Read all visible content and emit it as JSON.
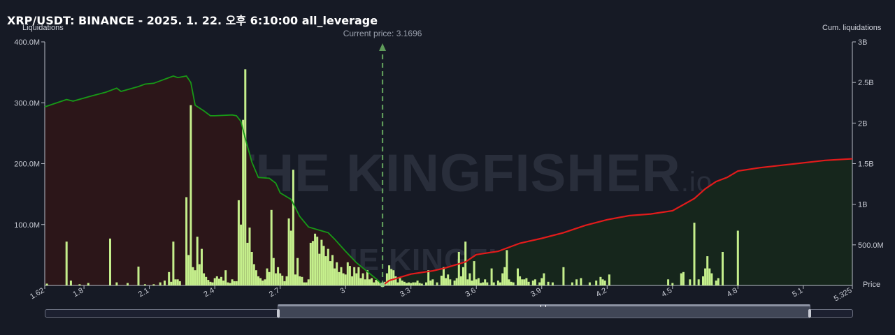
{
  "header": {
    "title": "XRP/USDT: BINANCE - 2025. 1. 22. 오후 6:10:00 all_leverage",
    "left_axis_title": "Liquidations",
    "right_axis_title": "Cum. liquidations",
    "x_axis_title": "Price"
  },
  "watermark": {
    "brand": "THE KINGFISHER",
    "suffix": ".io"
  },
  "colors": {
    "bar": "#c5ef8c",
    "long_line": "#179917",
    "short_line": "#e21b1b",
    "long_fill": "#2c1619",
    "short_fill": "#16261c",
    "current_price_line": "#5f9b5a"
  },
  "chart_data": {
    "type": "bar",
    "title": "XRP/USDT: BINANCE - 2025. 1. 22. 오후 6:10:00 all_leverage",
    "xlabel": "Price",
    "ylabel": "Liquidations",
    "y2label": "Cum. liquidations",
    "xlim": [
      1.62,
      5.325
    ],
    "ylim": [
      0,
      400000000
    ],
    "y2lim": [
      0,
      3000000000
    ],
    "x_ticks": [
      1.62,
      1.8,
      2.1,
      2.4,
      2.7,
      3,
      3.3,
      3.6,
      3.9,
      4.2,
      4.5,
      4.8,
      5.1,
      5.325
    ],
    "x_tick_labels": [
      "1.62",
      "1.8",
      "2.1",
      "2.4",
      "2.7",
      "3",
      "3.3",
      "3.6",
      "3.9",
      "4.2",
      "4.5",
      "4.8",
      "5.1",
      "5.325"
    ],
    "y_ticks": [
      100000000,
      200000000,
      300000000,
      400000000
    ],
    "y_tick_labels": [
      "100.0M",
      "200.0M",
      "300.0M",
      "400.0M"
    ],
    "y2_ticks": [
      500000000,
      1000000000,
      1500000000,
      2000000000,
      2500000000,
      3000000000
    ],
    "y2_tick_labels": [
      "500.0M",
      "1B",
      "1.5B",
      "2B",
      "2.5B",
      "3B"
    ],
    "grid": false,
    "current_price": 3.1696,
    "current_price_label": "Current price: 3.1696",
    "bars": [
      [
        1.63,
        3000000
      ],
      [
        1.72,
        72000000
      ],
      [
        1.74,
        8000000
      ],
      [
        1.78,
        2000000
      ],
      [
        1.82,
        4000000
      ],
      [
        1.92,
        77000000
      ],
      [
        1.95,
        5000000
      ],
      [
        2.0,
        4000000
      ],
      [
        2.05,
        31000000
      ],
      [
        2.08,
        2000000
      ],
      [
        2.12,
        2000000
      ],
      [
        2.15,
        5000000
      ],
      [
        2.17,
        8000000
      ],
      [
        2.19,
        22000000
      ],
      [
        2.2,
        6000000
      ],
      [
        2.21,
        72000000
      ],
      [
        2.22,
        10000000
      ],
      [
        2.23,
        10000000
      ],
      [
        2.24,
        7000000
      ],
      [
        2.27,
        145000000
      ],
      [
        2.28,
        50000000
      ],
      [
        2.29,
        296000000
      ],
      [
        2.3,
        30000000
      ],
      [
        2.31,
        25000000
      ],
      [
        2.32,
        80000000
      ],
      [
        2.33,
        35000000
      ],
      [
        2.34,
        60000000
      ],
      [
        2.35,
        20000000
      ],
      [
        2.36,
        14000000
      ],
      [
        2.37,
        9000000
      ],
      [
        2.38,
        6000000
      ],
      [
        2.39,
        5000000
      ],
      [
        2.4,
        12000000
      ],
      [
        2.41,
        15000000
      ],
      [
        2.42,
        11000000
      ],
      [
        2.43,
        14000000
      ],
      [
        2.44,
        8000000
      ],
      [
        2.45,
        25000000
      ],
      [
        2.46,
        5000000
      ],
      [
        2.47,
        4000000
      ],
      [
        2.48,
        10000000
      ],
      [
        2.49,
        7000000
      ],
      [
        2.5,
        7000000
      ],
      [
        2.51,
        140000000
      ],
      [
        2.52,
        100000000
      ],
      [
        2.53,
        272000000
      ],
      [
        2.54,
        355000000
      ],
      [
        2.55,
        70000000
      ],
      [
        2.56,
        95000000
      ],
      [
        2.57,
        55000000
      ],
      [
        2.58,
        35000000
      ],
      [
        2.59,
        25000000
      ],
      [
        2.6,
        15000000
      ],
      [
        2.61,
        12000000
      ],
      [
        2.62,
        8000000
      ],
      [
        2.63,
        10000000
      ],
      [
        2.64,
        28000000
      ],
      [
        2.65,
        22000000
      ],
      [
        2.66,
        124000000
      ],
      [
        2.67,
        45000000
      ],
      [
        2.68,
        20000000
      ],
      [
        2.69,
        30000000
      ],
      [
        2.7,
        20000000
      ],
      [
        2.71,
        16000000
      ],
      [
        2.72,
        7000000
      ],
      [
        2.73,
        15000000
      ],
      [
        2.74,
        110000000
      ],
      [
        2.75,
        90000000
      ],
      [
        2.76,
        190000000
      ],
      [
        2.77,
        18000000
      ],
      [
        2.78,
        45000000
      ],
      [
        2.79,
        15000000
      ],
      [
        2.8,
        14000000
      ],
      [
        2.81,
        5000000
      ],
      [
        2.82,
        5000000
      ],
      [
        2.83,
        10000000
      ],
      [
        2.84,
        70000000
      ],
      [
        2.85,
        73000000
      ],
      [
        2.86,
        85000000
      ],
      [
        2.87,
        80000000
      ],
      [
        2.88,
        52000000
      ],
      [
        2.89,
        75000000
      ],
      [
        2.9,
        65000000
      ],
      [
        2.91,
        48000000
      ],
      [
        2.92,
        60000000
      ],
      [
        2.93,
        40000000
      ],
      [
        2.94,
        50000000
      ],
      [
        2.95,
        28000000
      ],
      [
        2.96,
        38000000
      ],
      [
        2.97,
        22000000
      ],
      [
        2.98,
        30000000
      ],
      [
        2.99,
        20000000
      ],
      [
        3.0,
        18000000
      ],
      [
        3.01,
        38000000
      ],
      [
        3.02,
        32000000
      ],
      [
        3.03,
        15000000
      ],
      [
        3.04,
        30000000
      ],
      [
        3.05,
        20000000
      ],
      [
        3.06,
        30000000
      ],
      [
        3.07,
        12000000
      ],
      [
        3.08,
        20000000
      ],
      [
        3.09,
        10000000
      ],
      [
        3.1,
        25000000
      ],
      [
        3.11,
        10000000
      ],
      [
        3.12,
        12000000
      ],
      [
        3.13,
        5000000
      ],
      [
        3.14,
        9000000
      ],
      [
        3.15,
        7000000
      ],
      [
        3.16,
        4000000
      ],
      [
        3.18,
        6000000
      ],
      [
        3.19,
        20000000
      ],
      [
        3.2,
        33000000
      ],
      [
        3.21,
        27000000
      ],
      [
        3.22,
        25000000
      ],
      [
        3.23,
        15000000
      ],
      [
        3.24,
        5000000
      ],
      [
        3.25,
        12000000
      ],
      [
        3.26,
        8000000
      ],
      [
        3.27,
        6000000
      ],
      [
        3.28,
        4000000
      ],
      [
        3.29,
        5000000
      ],
      [
        3.3,
        4000000
      ],
      [
        3.31,
        5000000
      ],
      [
        3.32,
        5000000
      ],
      [
        3.33,
        8000000
      ],
      [
        3.34,
        4000000
      ],
      [
        3.35,
        3000000
      ],
      [
        3.37,
        5000000
      ],
      [
        3.38,
        25000000
      ],
      [
        3.39,
        8000000
      ],
      [
        3.4,
        10000000
      ],
      [
        3.42,
        5000000
      ],
      [
        3.44,
        16000000
      ],
      [
        3.45,
        30000000
      ],
      [
        3.46,
        12000000
      ],
      [
        3.47,
        18000000
      ],
      [
        3.48,
        10000000
      ],
      [
        3.5,
        8000000
      ],
      [
        3.51,
        12000000
      ],
      [
        3.52,
        55000000
      ],
      [
        3.53,
        15000000
      ],
      [
        3.54,
        30000000
      ],
      [
        3.55,
        72000000
      ],
      [
        3.56,
        10000000
      ],
      [
        3.57,
        20000000
      ],
      [
        3.58,
        8000000
      ],
      [
        3.59,
        40000000
      ],
      [
        3.6,
        10000000
      ],
      [
        3.61,
        12000000
      ],
      [
        3.62,
        4000000
      ],
      [
        3.63,
        5000000
      ],
      [
        3.64,
        10000000
      ],
      [
        3.65,
        5000000
      ],
      [
        3.67,
        28000000
      ],
      [
        3.68,
        5000000
      ],
      [
        3.7,
        8000000
      ],
      [
        3.71,
        5000000
      ],
      [
        3.72,
        20000000
      ],
      [
        3.73,
        30000000
      ],
      [
        3.74,
        58000000
      ],
      [
        3.75,
        10000000
      ],
      [
        3.76,
        6000000
      ],
      [
        3.77,
        5000000
      ],
      [
        3.79,
        28000000
      ],
      [
        3.8,
        15000000
      ],
      [
        3.81,
        10000000
      ],
      [
        3.82,
        10000000
      ],
      [
        3.83,
        12000000
      ],
      [
        3.84,
        6000000
      ],
      [
        3.86,
        8000000
      ],
      [
        3.87,
        10000000
      ],
      [
        3.89,
        5000000
      ],
      [
        3.9,
        12000000
      ],
      [
        3.91,
        20000000
      ],
      [
        3.93,
        6000000
      ],
      [
        3.95,
        5000000
      ],
      [
        4.0,
        30000000
      ],
      [
        4.04,
        5000000
      ],
      [
        4.06,
        10000000
      ],
      [
        4.08,
        12000000
      ],
      [
        4.12,
        5000000
      ],
      [
        4.15,
        8000000
      ],
      [
        4.17,
        14000000
      ],
      [
        4.18,
        10000000
      ],
      [
        4.19,
        8000000
      ],
      [
        4.21,
        18000000
      ],
      [
        4.48,
        10000000
      ],
      [
        4.5,
        4000000
      ],
      [
        4.54,
        20000000
      ],
      [
        4.55,
        22000000
      ],
      [
        4.58,
        10000000
      ],
      [
        4.6,
        103000000
      ],
      [
        4.62,
        10000000
      ],
      [
        4.64,
        15000000
      ],
      [
        4.65,
        28000000
      ],
      [
        4.66,
        48000000
      ],
      [
        4.67,
        28000000
      ],
      [
        4.68,
        20000000
      ],
      [
        4.7,
        8000000
      ],
      [
        4.71,
        12000000
      ],
      [
        4.73,
        55000000
      ],
      [
        4.8,
        90000000
      ]
    ],
    "series": [
      {
        "name": "",
        "side": "long",
        "points": [
          [
            1.62,
            2200000000
          ],
          [
            1.72,
            2290000000
          ],
          [
            1.75,
            2270000000
          ],
          [
            1.83,
            2330000000
          ],
          [
            1.9,
            2380000000
          ],
          [
            1.95,
            2430000000
          ],
          [
            1.97,
            2390000000
          ],
          [
            2.05,
            2450000000
          ],
          [
            2.08,
            2480000000
          ],
          [
            2.12,
            2490000000
          ],
          [
            2.16,
            2530000000
          ],
          [
            2.18,
            2550000000
          ],
          [
            2.21,
            2580000000
          ],
          [
            2.23,
            2560000000
          ],
          [
            2.27,
            2580000000
          ],
          [
            2.29,
            2500000000
          ],
          [
            2.31,
            2220000000
          ],
          [
            2.35,
            2150000000
          ],
          [
            2.38,
            2090000000
          ],
          [
            2.4,
            2090000000
          ],
          [
            2.48,
            2100000000
          ],
          [
            2.5,
            2090000000
          ],
          [
            2.52,
            2020000000
          ],
          [
            2.54,
            1810000000
          ],
          [
            2.57,
            1520000000
          ],
          [
            2.6,
            1330000000
          ],
          [
            2.65,
            1320000000
          ],
          [
            2.68,
            1260000000
          ],
          [
            2.7,
            1140000000
          ],
          [
            2.75,
            1060000000
          ],
          [
            2.79,
            850000000
          ],
          [
            2.83,
            720000000
          ],
          [
            2.88,
            680000000
          ],
          [
            2.92,
            650000000
          ],
          [
            2.95,
            570000000
          ],
          [
            3.0,
            420000000
          ],
          [
            3.05,
            280000000
          ],
          [
            3.1,
            170000000
          ],
          [
            3.15,
            60000000
          ],
          [
            3.1696,
            0
          ]
        ]
      },
      {
        "name": "",
        "side": "short",
        "points": [
          [
            3.1696,
            0
          ],
          [
            3.2,
            60000000
          ],
          [
            3.3,
            140000000
          ],
          [
            3.4,
            180000000
          ],
          [
            3.45,
            210000000
          ],
          [
            3.5,
            250000000
          ],
          [
            3.55,
            290000000
          ],
          [
            3.6,
            380000000
          ],
          [
            3.7,
            420000000
          ],
          [
            3.8,
            520000000
          ],
          [
            3.9,
            580000000
          ],
          [
            4.0,
            650000000
          ],
          [
            4.1,
            740000000
          ],
          [
            4.2,
            810000000
          ],
          [
            4.3,
            860000000
          ],
          [
            4.4,
            880000000
          ],
          [
            4.5,
            920000000
          ],
          [
            4.6,
            1070000000
          ],
          [
            4.65,
            1190000000
          ],
          [
            4.7,
            1280000000
          ],
          [
            4.75,
            1330000000
          ],
          [
            4.8,
            1410000000
          ],
          [
            4.9,
            1450000000
          ],
          [
            5.0,
            1480000000
          ],
          [
            5.1,
            1510000000
          ],
          [
            5.2,
            1540000000
          ],
          [
            5.325,
            1560000000
          ]
        ]
      }
    ]
  }
}
